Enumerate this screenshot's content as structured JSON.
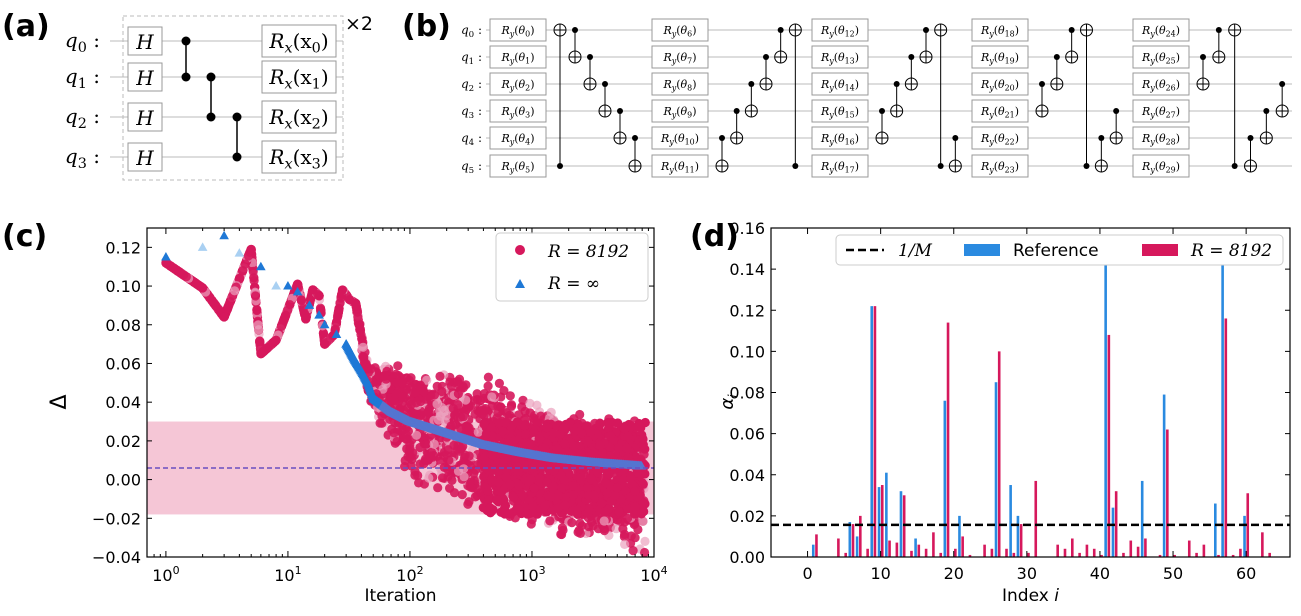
{
  "panel_labels": [
    "(a)",
    "(b)",
    "(c)",
    "(d)"
  ],
  "panel_a": {
    "qubits": [
      "q0",
      "q1",
      "q2",
      "q3"
    ],
    "gate_h": "H",
    "rotations": [
      "Rx(x0)",
      "Rx(x1)",
      "Rx(x2)",
      "Rx(x3)"
    ],
    "repeat": "×2",
    "entangling_pairs": [
      [
        0,
        1
      ],
      [
        1,
        2
      ],
      [
        2,
        3
      ]
    ]
  },
  "panel_b": {
    "qubits": [
      "q0",
      "q1",
      "q2",
      "q3",
      "q4",
      "q5"
    ],
    "layers": [
      [
        "Ry(θ0)",
        "Ry(θ1)",
        "Ry(θ2)",
        "Ry(θ3)",
        "Ry(θ4)",
        "Ry(θ5)"
      ],
      [
        "Ry(θ6)",
        "Ry(θ7)",
        "Ry(θ8)",
        "Ry(θ9)",
        "Ry(θ10)",
        "Ry(θ11)"
      ],
      [
        "Ry(θ12)",
        "Ry(θ13)",
        "Ry(θ14)",
        "Ry(θ15)",
        "Ry(θ16)",
        "Ry(θ17)"
      ],
      [
        "Ry(θ18)",
        "Ry(θ19)",
        "Ry(θ20)",
        "Ry(θ21)",
        "Ry(θ22)",
        "Ry(θ23)"
      ],
      [
        "Ry(θ24)",
        "Ry(θ25)",
        "Ry(θ26)",
        "Ry(θ27)",
        "Ry(θ28)",
        "Ry(θ29)"
      ]
    ],
    "cnot_blocks": [
      [
        [
          5,
          0
        ],
        [
          0,
          1
        ],
        [
          1,
          2
        ],
        [
          2,
          3
        ],
        [
          3,
          4
        ],
        [
          4,
          5
        ]
      ],
      [
        [
          4,
          5
        ],
        [
          3,
          4
        ],
        [
          2,
          3
        ],
        [
          1,
          2
        ],
        [
          0,
          1
        ],
        [
          5,
          0
        ]
      ],
      [
        [
          3,
          4
        ],
        [
          2,
          3
        ],
        [
          1,
          2
        ],
        [
          0,
          1
        ],
        [
          5,
          0
        ],
        [
          4,
          5
        ]
      ],
      [
        [
          2,
          3
        ],
        [
          1,
          2
        ],
        [
          0,
          1
        ],
        [
          5,
          0
        ],
        [
          4,
          5
        ],
        [
          3,
          4
        ]
      ],
      [
        [
          1,
          2
        ],
        [
          0,
          1
        ],
        [
          5,
          0
        ],
        [
          4,
          5
        ],
        [
          3,
          4
        ],
        [
          2,
          3
        ]
      ]
    ]
  },
  "chart_data": [
    {
      "panel": "(c)",
      "type": "scatter",
      "xscale": "log",
      "xlim": [
        0.7,
        10000
      ],
      "ylim": [
        -0.04,
        0.13
      ],
      "xlabel": "Iteration",
      "ylabel": "Δ",
      "xticks": [
        "10^0",
        "10^1",
        "10^2",
        "10^3",
        "10^4"
      ],
      "yticks": [
        "−0.04",
        "−0.02",
        "0.00",
        "0.02",
        "0.04",
        "0.06",
        "0.08",
        "0.10",
        "0.12"
      ],
      "band": [
        -0.018,
        0.03
      ],
      "hline": 0.006,
      "legend": {
        "location": "top-right",
        "entries": [
          "R = 8192",
          "R = ∞"
        ]
      },
      "series": [
        {
          "name": "R = 8192",
          "marker": "circle",
          "color": "#d6185c",
          "x": [
            1,
            2,
            3,
            5,
            6,
            8,
            12,
            14,
            16,
            18,
            20,
            24,
            28,
            32,
            36,
            45,
            60,
            80,
            100,
            150,
            200,
            300,
            500,
            800,
            1200,
            2000,
            3000,
            5000,
            8000
          ],
          "y": [
            0.112,
            0.099,
            0.084,
            0.119,
            0.065,
            0.072,
            0.101,
            0.083,
            0.098,
            0.095,
            0.07,
            0.075,
            0.098,
            0.093,
            0.091,
            0.052,
            0.045,
            0.04,
            0.035,
            0.03,
            0.029,
            0.022,
            0.02,
            0.014,
            0.01,
            0.006,
            0.004,
            0.002,
            0.0
          ],
          "spread_upper": [
            0,
            0,
            0,
            0,
            0,
            0,
            0,
            0,
            0,
            0,
            0,
            0,
            0,
            0,
            0,
            0.01,
            0.015,
            0.02,
            0.02,
            0.025,
            0.027,
            0.03,
            0.035,
            0.03,
            0.03,
            0.03,
            0.03,
            0.03,
            0.03
          ],
          "spread_lower": [
            0,
            0,
            0,
            0,
            0,
            0,
            0,
            0,
            0,
            0,
            0,
            0,
            0,
            0,
            0,
            0.01,
            0.02,
            0.03,
            0.035,
            0.04,
            0.04,
            0.04,
            0.04,
            0.04,
            0.04,
            0.04,
            0.04,
            0.04,
            0.04
          ]
        },
        {
          "name": "R = ∞",
          "marker": "triangle",
          "color": "#1e78d6",
          "x": [
            1,
            2,
            3,
            4,
            6,
            8,
            10,
            12,
            15,
            18,
            20,
            25,
            30,
            35,
            40,
            45,
            50,
            70,
            100,
            200,
            400,
            800,
            1500,
            3000,
            8000
          ],
          "y": [
            0.115,
            0.12,
            0.126,
            0.117,
            0.11,
            0.1,
            0.1,
            0.097,
            0.09,
            0.085,
            0.08,
            0.075,
            0.07,
            0.062,
            0.056,
            0.05,
            0.042,
            0.035,
            0.03,
            0.024,
            0.018,
            0.014,
            0.011,
            0.009,
            0.007
          ]
        }
      ]
    },
    {
      "panel": "(d)",
      "type": "bar",
      "xlim": [
        -5,
        66
      ],
      "ylim": [
        0,
        0.16
      ],
      "xlabel": "Index i",
      "ylabel": "αi",
      "xticks": [
        "0",
        "10",
        "20",
        "30",
        "40",
        "50",
        "60"
      ],
      "yticks": [
        "0.00",
        "0.02",
        "0.04",
        "0.06",
        "0.08",
        "0.10",
        "0.12",
        "0.14",
        "0.16"
      ],
      "hline": 0.015625,
      "legend": {
        "location": "top",
        "entries": [
          "1/M",
          "Reference",
          "R = 8192"
        ]
      },
      "categories": [
        0,
        1,
        2,
        3,
        4,
        5,
        6,
        7,
        8,
        9,
        10,
        11,
        12,
        13,
        14,
        15,
        16,
        17,
        18,
        19,
        20,
        21,
        22,
        23,
        24,
        25,
        26,
        27,
        28,
        29,
        30,
        31,
        32,
        33,
        34,
        35,
        36,
        37,
        38,
        39,
        40,
        41,
        42,
        43,
        44,
        45,
        46,
        47,
        48,
        49,
        50,
        51,
        52,
        53,
        54,
        55,
        56,
        57,
        58,
        59,
        60,
        61,
        62,
        63
      ],
      "series": [
        {
          "name": "Reference",
          "color": "#2a8ae0",
          "values": [
            0,
            0.006,
            0,
            0,
            0,
            0,
            0.017,
            0.01,
            0,
            0.122,
            0.034,
            0.041,
            0,
            0.032,
            0,
            0.009,
            0,
            0,
            0,
            0.076,
            0,
            0.02,
            0,
            0,
            0,
            0,
            0.085,
            0,
            0.035,
            0.02,
            0,
            0,
            0,
            0,
            0,
            0,
            0,
            0,
            0,
            0,
            0,
            0.155,
            0.024,
            0,
            0,
            0,
            0.037,
            0,
            0,
            0.079,
            0,
            0,
            0,
            0,
            0,
            0,
            0.026,
            0.15,
            0,
            0,
            0.02,
            0,
            0,
            0
          ]
        },
        {
          "name": "R = 8192",
          "color": "#d6185c",
          "values": [
            0,
            0.011,
            0,
            0,
            0.009,
            0.002,
            0.016,
            0.02,
            0.004,
            0.122,
            0.035,
            0.008,
            0.007,
            0.03,
            0.003,
            0.006,
            0.004,
            0.012,
            0.002,
            0.114,
            0.004,
            0.01,
            0.001,
            0,
            0.006,
            0.004,
            0.1,
            0.004,
            0.002,
            0.016,
            0.002,
            0.037,
            0,
            0,
            0.006,
            0.004,
            0.009,
            0.002,
            0.006,
            0.004,
            0.001,
            0.108,
            0.032,
            0.002,
            0.008,
            0.005,
            0.009,
            0,
            0.001,
            0.062,
            0.001,
            0,
            0.008,
            0.002,
            0.006,
            0,
            0.001,
            0.116,
            0.001,
            0.004,
            0.031,
            0,
            0.012,
            0.002
          ]
        }
      ]
    }
  ]
}
